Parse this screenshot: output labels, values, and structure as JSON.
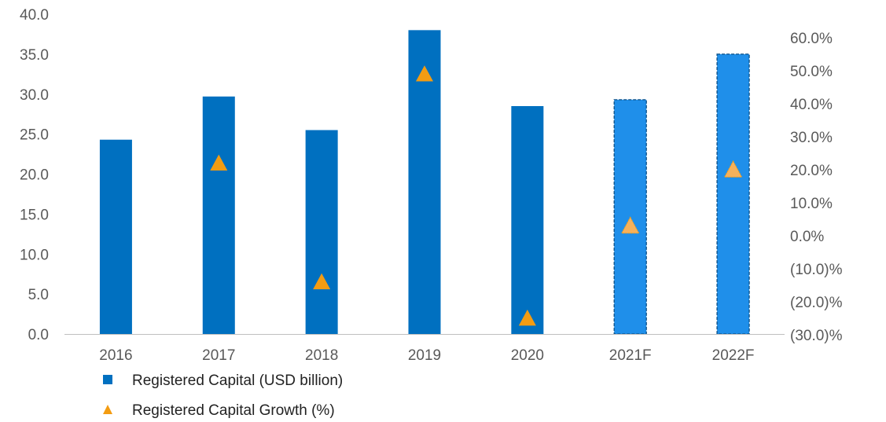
{
  "chart_data": {
    "type": "bar",
    "categories": [
      "2016",
      "2017",
      "2018",
      "2019",
      "2020",
      "2021F",
      "2022F"
    ],
    "series": [
      {
        "name": "Registered Capital (USD billion)",
        "type": "bar",
        "axis": "left",
        "values": [
          24.3,
          29.7,
          25.5,
          38.0,
          28.5,
          29.3,
          35.0
        ],
        "forecast": [
          false,
          false,
          false,
          false,
          false,
          true,
          true
        ]
      },
      {
        "name": "Registered Capital Growth (%)",
        "type": "scatter",
        "axis": "right",
        "marker": "triangle",
        "values": [
          null,
          22.0,
          -14.0,
          49.0,
          -25.0,
          3.0,
          20.0
        ]
      }
    ],
    "y_left": {
      "ylim": [
        0,
        40
      ],
      "ticks": [
        0,
        5,
        10,
        15,
        20,
        25,
        30,
        35,
        40
      ],
      "tick_labels": [
        "0.0",
        "5.0",
        "10.0",
        "15.0",
        "20.0",
        "25.0",
        "30.0",
        "35.0",
        "40.0"
      ]
    },
    "y_right": {
      "ylim": [
        -30,
        60
      ],
      "ticks": [
        -30,
        -20,
        -10,
        0,
        10,
        20,
        30,
        40,
        50,
        60
      ],
      "tick_labels": [
        "(30.0)%",
        "(20.0)%",
        "(10.0)%",
        "0.0%",
        "10.0%",
        "20.0%",
        "30.0%",
        "40.0%",
        "50.0%",
        "60.0%"
      ]
    },
    "grid": false,
    "legend": "bottom-left",
    "colors": {
      "bar": "#0070C0",
      "bar_forecast": "#1F8FEA",
      "bar_forecast_border": "#0B4F86",
      "marker": "#F39C12",
      "marker_forecast": "#F6B15A",
      "axis_line": "#BFBFBF"
    }
  }
}
